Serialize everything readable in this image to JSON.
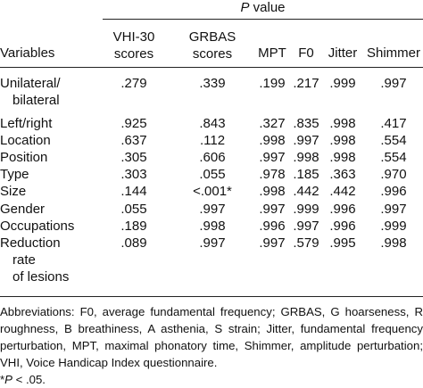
{
  "table": {
    "group_header_italic": "P",
    "group_header_rest": " value",
    "columns": {
      "variables": "Variables",
      "vhi_line1": "VHI-30",
      "vhi_line2": "scores",
      "grbas_line1": "GRBAS",
      "grbas_line2": "scores",
      "mpt": "MPT",
      "f0": "F0",
      "jitter": "Jitter",
      "shimmer": "Shimmer"
    },
    "rows": [
      {
        "var": [
          "Unilateral/",
          "bilateral"
        ],
        "vhi": ".279",
        "grbas": ".339",
        "mpt": ".199",
        "f0": ".217",
        "jitter": ".999",
        "shimmer": ".997"
      },
      {
        "var": [
          "Left/right"
        ],
        "vhi": ".925",
        "grbas": ".843",
        "mpt": ".327",
        "f0": ".835",
        "jitter": ".998",
        "shimmer": ".417"
      },
      {
        "var": [
          "Location"
        ],
        "vhi": ".637",
        "grbas": ".112",
        "mpt": ".998",
        "f0": ".997",
        "jitter": ".998",
        "shimmer": ".554"
      },
      {
        "var": [
          "Position"
        ],
        "vhi": ".305",
        "grbas": ".606",
        "mpt": ".997",
        "f0": ".998",
        "jitter": ".998",
        "shimmer": ".554"
      },
      {
        "var": [
          "Type"
        ],
        "vhi": ".303",
        "grbas": ".055",
        "mpt": ".978",
        "f0": ".185",
        "jitter": ".363",
        "shimmer": ".970"
      },
      {
        "var": [
          "Size"
        ],
        "vhi": ".144",
        "grbas": "<.001*",
        "mpt": ".998",
        "f0": ".442",
        "jitter": ".442",
        "shimmer": ".996"
      },
      {
        "var": [
          "Gender"
        ],
        "vhi": ".055",
        "grbas": ".997",
        "mpt": ".997",
        "f0": ".999",
        "jitter": ".996",
        "shimmer": ".997"
      },
      {
        "var": [
          "Occupations"
        ],
        "vhi": ".189",
        "grbas": ".998",
        "mpt": ".996",
        "f0": ".997",
        "jitter": ".996",
        "shimmer": ".999"
      },
      {
        "var": [
          "Reduction",
          "rate",
          "of lesions"
        ],
        "vhi": ".089",
        "grbas": ".997",
        "mpt": ".997",
        "f0": ".579",
        "jitter": ".995",
        "shimmer": ".998"
      }
    ]
  },
  "notes": {
    "abbreviations": "Abbreviations: F0, average fundamental frequency; GRBAS, G hoarseness, R roughness, B breathiness, A asthenia, S strain; Jitter, fundamental frequency perturbation, MPT, maximal phonatory time, Shimmer, amplitude perturbation; VHI, Voice Handicap Index questionnaire.",
    "footnote_symbol": "*",
    "footnote_p": "P",
    "footnote_rest": " < .05."
  }
}
